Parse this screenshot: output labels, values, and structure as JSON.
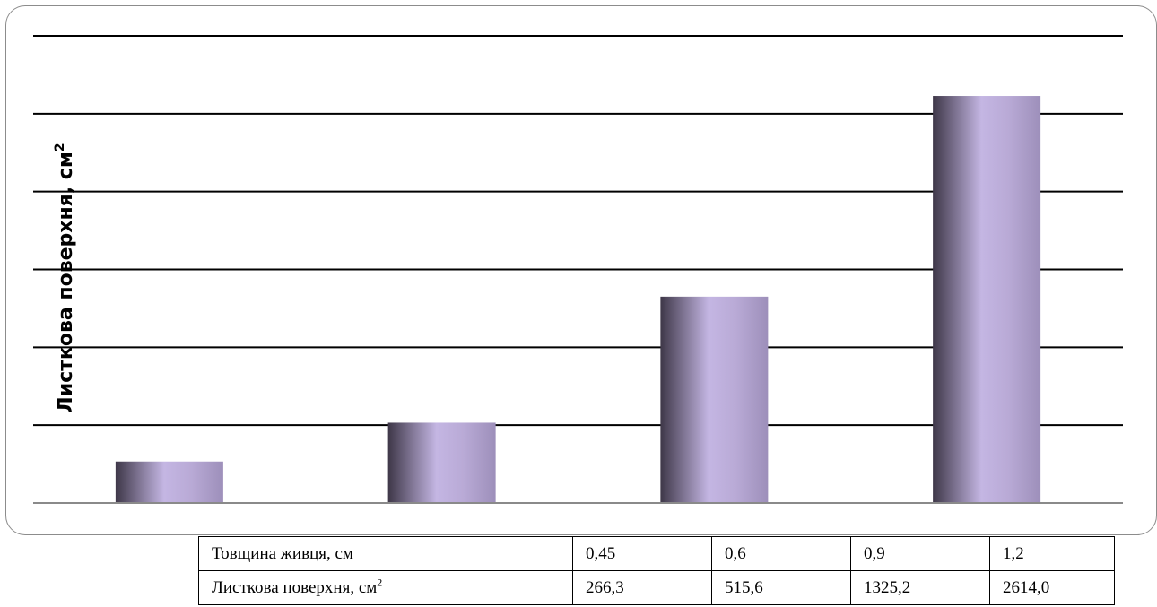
{
  "chart_data": {
    "type": "bar",
    "categories": [
      "0,45",
      "0,6",
      "0,9",
      "1,2"
    ],
    "values": [
      266.3,
      515.6,
      1325.2,
      2614.0
    ],
    "ylabel": "Листкова поверхня, см",
    "ylabel_sup": "2",
    "ylim": [
      0,
      3000
    ],
    "ytick_step": 500,
    "grid": true,
    "legend": "none",
    "bar_color": "#b9aad6",
    "bar_edge_color": "#3e3748"
  },
  "table": {
    "rows": [
      {
        "label": "Товщина живця, см",
        "label_sup": "",
        "values": [
          "0,45",
          "0,6",
          "0,9",
          "1,2"
        ]
      },
      {
        "label": "Листкова поверхня, см",
        "label_sup": "2",
        "values": [
          "266,3",
          "515,6",
          "1325,2",
          "2614,0"
        ]
      }
    ]
  }
}
